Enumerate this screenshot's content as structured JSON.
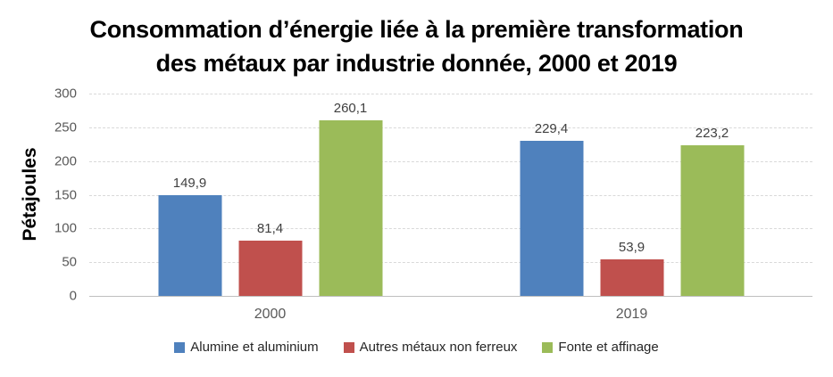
{
  "chart_data": {
    "type": "bar",
    "title": "Consommation d’énergie liée à la première transformation des métaux par industrie donnée, 2000 et 2019",
    "title_lines": [
      "Consommation d’énergie liée à la première transformation",
      "des métaux par industrie donnée, 2000 et 2019"
    ],
    "xlabel": "",
    "ylabel": "Pétajoules",
    "ylim": [
      0,
      300
    ],
    "yticks": [
      300,
      250,
      200,
      150,
      100,
      50,
      0
    ],
    "grid": true,
    "legend_position": "bottom",
    "categories": [
      "2000",
      "2019"
    ],
    "series": [
      {
        "name": "Alumine et aluminium",
        "color": "#4F81BD",
        "values": [
          149.9,
          229.4
        ]
      },
      {
        "name": "Autres métaux non ferreux",
        "color": "#C0504D",
        "values": [
          81.4,
          53.9
        ]
      },
      {
        "name": "Fonte et affinage",
        "color": "#9BBB59",
        "values": [
          260.1,
          223.2
        ]
      }
    ],
    "value_labels": [
      [
        "149,9",
        "81,4",
        "260,1"
      ],
      [
        "229,4",
        "53,9",
        "223,2"
      ]
    ]
  },
  "colors": {
    "background": "#FFFFFF",
    "title": "#000000",
    "gridline": "#D9D9D9",
    "axis_line": "#BFBFBF",
    "tick_text": "#595959",
    "data_label": "#404040",
    "legend_text": "#262626"
  }
}
